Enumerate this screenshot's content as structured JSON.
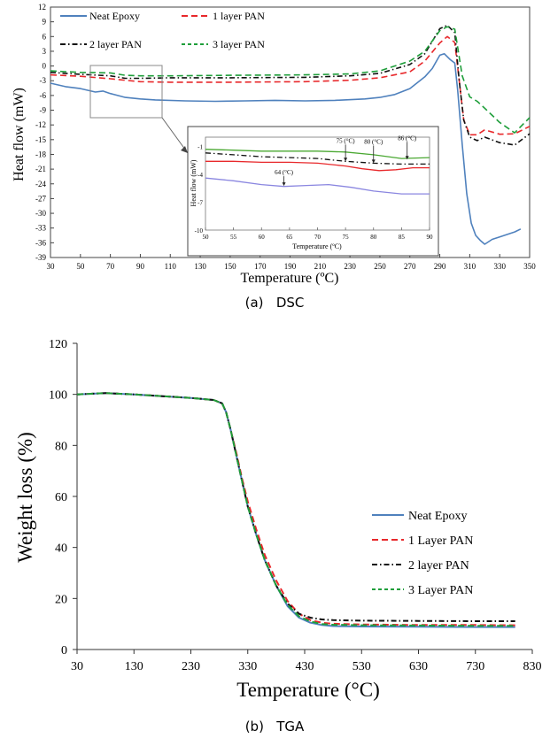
{
  "chart_data": [
    {
      "type": "line",
      "xlabel": "Temperature (ºC)",
      "ylabel": "Heat flow (mW)",
      "caption": "(a)   DSC",
      "xlim": [
        30,
        350
      ],
      "ylim": [
        -39,
        12
      ],
      "xticks": [
        30,
        50,
        70,
        90,
        110,
        130,
        150,
        170,
        190,
        210,
        230,
        250,
        270,
        290,
        310,
        330,
        350
      ],
      "yticks": [
        12,
        9,
        6,
        3,
        0,
        -3,
        -6,
        -9,
        -12,
        -15,
        -18,
        -21,
        -24,
        -27,
        -30,
        -33,
        -36,
        -39
      ],
      "grid": false,
      "legend_position": "top-left",
      "series": [
        {
          "name": "Neat Epoxy",
          "color": "#4f81bd",
          "dash": "solid",
          "x": [
            30,
            40,
            50,
            60,
            65,
            70,
            80,
            90,
            100,
            120,
            140,
            160,
            180,
            200,
            220,
            240,
            250,
            260,
            270,
            280,
            285,
            290,
            293,
            297,
            300,
            302,
            305,
            308,
            311,
            314,
            317,
            320,
            325,
            330,
            340,
            344
          ],
          "y": [
            -3.5,
            -4.2,
            -4.6,
            -5.3,
            -5.1,
            -5.6,
            -6.4,
            -6.7,
            -6.9,
            -7.1,
            -7.2,
            -7.1,
            -7.0,
            -7.1,
            -7.0,
            -6.7,
            -6.4,
            -5.8,
            -4.6,
            -2.2,
            -0.5,
            2.2,
            2.5,
            1.3,
            0.6,
            -5,
            -16,
            -26,
            -32,
            -34.5,
            -35.5,
            -36.3,
            -35.3,
            -34.8,
            -33.8,
            -33.2
          ]
        },
        {
          "name": "1 layer PAN",
          "color": "#e8282b",
          "dash": "dashed",
          "x": [
            30,
            50,
            70,
            80,
            90,
            110,
            150,
            200,
            230,
            250,
            270,
            280,
            290,
            295,
            300,
            303,
            306,
            310,
            315,
            320,
            330,
            340,
            350
          ],
          "y": [
            -1.8,
            -2.1,
            -2.6,
            -2.9,
            -3.2,
            -3.3,
            -3.3,
            -3.2,
            -2.9,
            -2.4,
            -1.2,
            1.0,
            4.7,
            6.0,
            4.8,
            -3,
            -11,
            -14,
            -14,
            -13,
            -13.9,
            -13.8,
            -12.3
          ]
        },
        {
          "name": "2 layer PAN",
          "color": "#111111",
          "dash": "dashdot",
          "x": [
            30,
            50,
            70,
            80,
            90,
            110,
            150,
            200,
            230,
            250,
            270,
            280,
            290,
            295,
            300,
            303,
            306,
            310,
            315,
            320,
            330,
            340,
            350
          ],
          "y": [
            -1.3,
            -1.7,
            -2.0,
            -2.5,
            -2.5,
            -2.4,
            -2.4,
            -2.3,
            -2.0,
            -1.5,
            0.3,
            2.5,
            7.6,
            8.3,
            6.8,
            -3,
            -11,
            -14.5,
            -15.2,
            -14.5,
            -15.6,
            -16.1,
            -13.8
          ]
        },
        {
          "name": "3 layer PAN",
          "color": "#1e9e3a",
          "dash": "dashed",
          "x": [
            30,
            50,
            70,
            80,
            90,
            110,
            150,
            200,
            230,
            250,
            270,
            280,
            290,
            295,
            300,
            305,
            310,
            315,
            320,
            330,
            340,
            350
          ],
          "y": [
            -1.0,
            -1.3,
            -1.4,
            -1.9,
            -2.0,
            -2.0,
            -1.9,
            -1.8,
            -1.6,
            -1.0,
            1.0,
            3.0,
            7.2,
            8.0,
            7.5,
            -2,
            -6.3,
            -7.2,
            -8.6,
            -11.5,
            -13.6,
            -10.5
          ]
        }
      ],
      "inset": {
        "xlabel": "Temperature (ºC)",
        "ylabel": "Heat flow (mW)",
        "xlim": [
          50,
          90
        ],
        "ylim": [
          -10,
          0
        ],
        "xticks": [
          50,
          55,
          60,
          65,
          70,
          75,
          80,
          85,
          90
        ],
        "yticks": [
          -1,
          -4,
          -7,
          -10
        ],
        "annotations": [
          {
            "text": "64 (°C)",
            "x": 64
          },
          {
            "text": "75 (°C)",
            "x": 75
          },
          {
            "text": "80 (°C)",
            "x": 80
          },
          {
            "text": "86 (°C)",
            "x": 86
          }
        ],
        "series": [
          {
            "name": "Neat Epoxy",
            "x": [
              50,
              55,
              60,
              64,
              68,
              72,
              76,
              80,
              85,
              90
            ],
            "y": [
              -4.4,
              -4.7,
              -5.1,
              -5.3,
              -5.2,
              -5.1,
              -5.4,
              -5.8,
              -6.1,
              -6.1
            ]
          },
          {
            "name": "1 layer PAN",
            "x": [
              50,
              55,
              60,
              65,
              70,
              75,
              78,
              81,
              84,
              87,
              90
            ],
            "y": [
              -2.6,
              -2.6,
              -2.7,
              -2.7,
              -2.8,
              -3.1,
              -3.4,
              -3.6,
              -3.5,
              -3.3,
              -3.3
            ]
          },
          {
            "name": "2 layer PAN",
            "x": [
              50,
              55,
              60,
              65,
              70,
              75,
              80,
              85,
              90
            ],
            "y": [
              -1.7,
              -1.9,
              -2.1,
              -2.2,
              -2.3,
              -2.6,
              -2.8,
              -2.9,
              -2.9
            ]
          },
          {
            "name": "3 layer PAN",
            "x": [
              50,
              55,
              60,
              65,
              70,
              75,
              80,
              85,
              90
            ],
            "y": [
              -1.3,
              -1.4,
              -1.5,
              -1.5,
              -1.5,
              -1.6,
              -1.9,
              -2.3,
              -2.2
            ]
          }
        ]
      }
    },
    {
      "type": "line",
      "xlabel": "Temperature (°C)",
      "ylabel": "Weight loss (%)",
      "caption": "(b)   TGA",
      "xlim": [
        30,
        830
      ],
      "ylim": [
        0,
        120
      ],
      "xticks": [
        30,
        130,
        230,
        330,
        430,
        530,
        630,
        730,
        830
      ],
      "yticks": [
        0,
        20,
        40,
        60,
        80,
        100,
        120
      ],
      "grid": false,
      "legend_position": "right",
      "series": [
        {
          "name": "Neat Epoxy",
          "color": "#4f81bd",
          "dash": "solid",
          "x": [
            30,
            80,
            130,
            180,
            230,
            270,
            285,
            292,
            300,
            310,
            320,
            330,
            345,
            360,
            380,
            400,
            420,
            440,
            460,
            480,
            530,
            630,
            730,
            800
          ],
          "y": [
            100,
            100.5,
            100,
            99.3,
            98.6,
            97.8,
            96.5,
            93,
            86,
            76,
            66,
            56,
            45,
            35,
            25,
            17,
            12.5,
            10.5,
            9.6,
            9.2,
            9,
            8.9,
            8.8,
            8.8
          ]
        },
        {
          "name": "1 Layer PAN",
          "color": "#e8282b",
          "dash": "dashed",
          "x": [
            30,
            80,
            130,
            180,
            230,
            270,
            285,
            292,
            300,
            310,
            320,
            330,
            345,
            360,
            380,
            400,
            420,
            440,
            460,
            480,
            530,
            630,
            730,
            800
          ],
          "y": [
            100,
            100.5,
            100,
            99.3,
            98.6,
            97.8,
            96.5,
            93,
            86,
            77,
            67,
            58,
            47,
            37,
            27,
            19,
            14,
            11.5,
            10.5,
            10.1,
            9.8,
            9.6,
            9.6,
            9.5
          ]
        },
        {
          "name": "2 layer PAN",
          "color": "#111111",
          "dash": "dashdot",
          "x": [
            30,
            80,
            130,
            180,
            230,
            270,
            285,
            292,
            300,
            310,
            320,
            330,
            345,
            360,
            380,
            400,
            420,
            440,
            460,
            480,
            530,
            630,
            730,
            800
          ],
          "y": [
            100,
            100.5,
            100,
            99.3,
            98.6,
            97.8,
            96.5,
            93,
            86,
            76,
            66,
            56,
            45,
            35,
            25,
            18,
            14,
            12.5,
            11.8,
            11.5,
            11.3,
            11.2,
            11.1,
            11.1
          ]
        },
        {
          "name": "3 Layer PAN",
          "color": "#1e9e3a",
          "dash": "dashed",
          "x": [
            30,
            80,
            130,
            180,
            230,
            270,
            285,
            292,
            300,
            310,
            320,
            330,
            345,
            360,
            380,
            400,
            420,
            440,
            460,
            480,
            530,
            630,
            730,
            800
          ],
          "y": [
            100,
            100.5,
            100,
            99.3,
            98.6,
            97.8,
            96.5,
            93,
            86,
            76,
            66,
            56,
            45,
            35,
            25,
            17.5,
            13,
            11,
            10,
            9.7,
            9.5,
            9.4,
            9.3,
            9.3
          ]
        }
      ]
    }
  ]
}
